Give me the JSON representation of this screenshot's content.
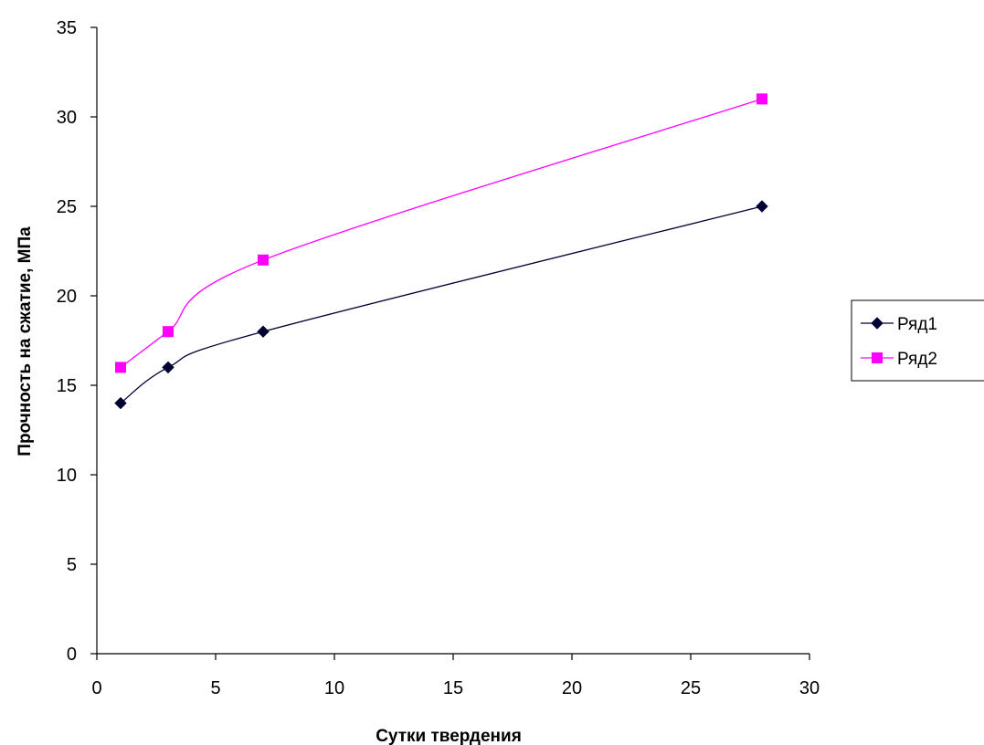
{
  "chart_data": {
    "type": "line",
    "xlabel": "Сутки твердения",
    "ylabel": "Прочность на сжатие, МПа",
    "xlim": [
      0,
      30
    ],
    "ylim": [
      0,
      35
    ],
    "xticks": [
      "0",
      "5",
      "10",
      "15",
      "20",
      "25",
      "30"
    ],
    "yticks": [
      "0",
      "5",
      "10",
      "15",
      "20",
      "25",
      "30",
      "35"
    ],
    "grid": false,
    "legend_position": "right",
    "series": [
      {
        "name": "Ряд1",
        "color": "#000033",
        "marker": "diamond",
        "x": [
          1,
          3,
          7,
          28
        ],
        "y": [
          14,
          16,
          18,
          25
        ]
      },
      {
        "name": "Ряд2",
        "color": "#ff00ff",
        "marker": "square",
        "x": [
          1,
          3,
          7,
          28
        ],
        "y": [
          16,
          18,
          22,
          31
        ]
      }
    ]
  }
}
